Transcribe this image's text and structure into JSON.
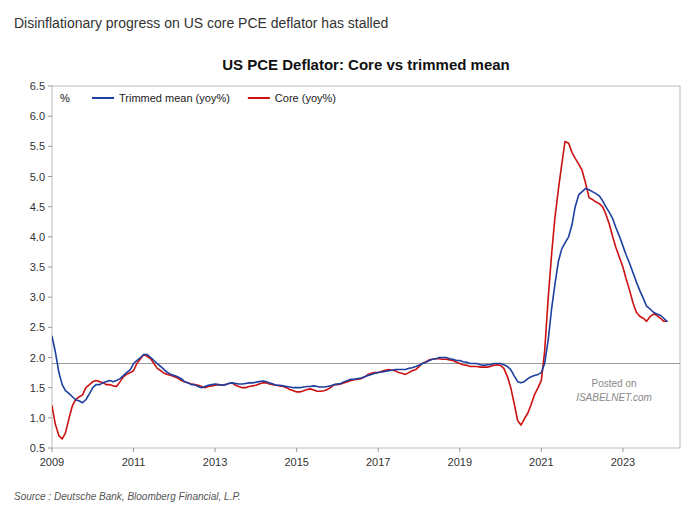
{
  "chart_data": {
    "type": "line",
    "title": "US PCE Deflator: Core vs trimmed mean",
    "headline": "Disinflationary progress on US core PCE deflator has stalled",
    "source": "Source : Deutsche Bank, Bloomberg Financial, L.P.",
    "y_label": "%",
    "watermark": [
      "Posted on",
      "ISABELNET.com"
    ],
    "reference_line": 1.9,
    "xlim": [
      2009.0,
      2024.4
    ],
    "xticks": [
      2009,
      2011,
      2013,
      2015,
      2017,
      2019,
      2021,
      2023
    ],
    "ylim": [
      0.5,
      6.5
    ],
    "yticks": [
      0.5,
      {
        "value": 1.0,
        "label": "1.0"
      },
      1.5,
      {
        "value": 2.0,
        "label": "2.0"
      },
      2.5,
      {
        "value": 3.0,
        "label": "3.0"
      },
      3.5,
      {
        "value": 4.0,
        "label": "4.0"
      },
      4.5,
      {
        "value": 5.0,
        "label": "5.0"
      },
      5.5,
      {
        "value": 6.0,
        "label": "6.0"
      },
      6.5
    ],
    "grid": false,
    "legend": "upper left",
    "x": [
      2009.0,
      2009.08,
      2009.17,
      2009.25,
      2009.33,
      2009.42,
      2009.5,
      2009.58,
      2009.67,
      2009.75,
      2009.83,
      2009.92,
      2010.0,
      2010.08,
      2010.17,
      2010.25,
      2010.33,
      2010.42,
      2010.5,
      2010.58,
      2010.67,
      2010.75,
      2010.83,
      2010.92,
      2011.0,
      2011.08,
      2011.17,
      2011.25,
      2011.33,
      2011.42,
      2011.5,
      2011.58,
      2011.67,
      2011.75,
      2011.83,
      2011.92,
      2012.0,
      2012.08,
      2012.17,
      2012.25,
      2012.33,
      2012.42,
      2012.5,
      2012.58,
      2012.67,
      2012.75,
      2012.83,
      2012.92,
      2013.0,
      2013.08,
      2013.17,
      2013.25,
      2013.33,
      2013.42,
      2013.5,
      2013.58,
      2013.67,
      2013.75,
      2013.83,
      2013.92,
      2014.0,
      2014.08,
      2014.17,
      2014.25,
      2014.33,
      2014.42,
      2014.5,
      2014.58,
      2014.67,
      2014.75,
      2014.83,
      2014.92,
      2015.0,
      2015.08,
      2015.17,
      2015.25,
      2015.33,
      2015.42,
      2015.5,
      2015.58,
      2015.67,
      2015.75,
      2015.83,
      2015.92,
      2016.0,
      2016.08,
      2016.17,
      2016.25,
      2016.33,
      2016.42,
      2016.5,
      2016.58,
      2016.67,
      2016.75,
      2016.83,
      2016.92,
      2017.0,
      2017.08,
      2017.17,
      2017.25,
      2017.33,
      2017.42,
      2017.5,
      2017.58,
      2017.67,
      2017.75,
      2017.83,
      2017.92,
      2018.0,
      2018.08,
      2018.17,
      2018.25,
      2018.33,
      2018.42,
      2018.5,
      2018.58,
      2018.67,
      2018.75,
      2018.83,
      2018.92,
      2019.0,
      2019.08,
      2019.17,
      2019.25,
      2019.33,
      2019.42,
      2019.5,
      2019.58,
      2019.67,
      2019.75,
      2019.83,
      2019.92,
      2020.0,
      2020.08,
      2020.17,
      2020.25,
      2020.33,
      2020.42,
      2020.5,
      2020.58,
      2020.67,
      2020.75,
      2020.83,
      2020.92,
      2021.0,
      2021.08,
      2021.17,
      2021.25,
      2021.33,
      2021.42,
      2021.5,
      2021.58,
      2021.67,
      2021.75,
      2021.83,
      2021.92,
      2022.0,
      2022.08,
      2022.17,
      2022.25,
      2022.33,
      2022.42,
      2022.5,
      2022.58,
      2022.67,
      2022.75,
      2022.83,
      2022.92,
      2023.0,
      2023.08,
      2023.17,
      2023.25,
      2023.33,
      2023.42,
      2023.5,
      2023.58,
      2023.67,
      2023.75,
      2023.83,
      2023.92,
      2024.0,
      2024.08
    ],
    "series": [
      {
        "name": "Trimmed mean (yoy%)",
        "color": "#1c3fa0",
        "values": [
          2.35,
          2.1,
          1.75,
          1.55,
          1.45,
          1.4,
          1.35,
          1.3,
          1.28,
          1.25,
          1.3,
          1.4,
          1.5,
          1.55,
          1.55,
          1.58,
          1.6,
          1.62,
          1.6,
          1.62,
          1.65,
          1.7,
          1.75,
          1.8,
          1.9,
          1.95,
          2.0,
          2.05,
          2.05,
          2.0,
          1.95,
          1.9,
          1.85,
          1.8,
          1.75,
          1.72,
          1.7,
          1.68,
          1.65,
          1.6,
          1.58,
          1.55,
          1.55,
          1.52,
          1.5,
          1.52,
          1.54,
          1.55,
          1.56,
          1.55,
          1.54,
          1.55,
          1.57,
          1.58,
          1.57,
          1.56,
          1.56,
          1.57,
          1.58,
          1.58,
          1.59,
          1.6,
          1.61,
          1.6,
          1.58,
          1.56,
          1.54,
          1.54,
          1.53,
          1.52,
          1.51,
          1.5,
          1.5,
          1.5,
          1.51,
          1.52,
          1.52,
          1.53,
          1.52,
          1.51,
          1.51,
          1.52,
          1.53,
          1.55,
          1.56,
          1.57,
          1.6,
          1.62,
          1.64,
          1.64,
          1.65,
          1.66,
          1.68,
          1.7,
          1.72,
          1.74,
          1.75,
          1.76,
          1.77,
          1.78,
          1.79,
          1.8,
          1.8,
          1.8,
          1.8,
          1.82,
          1.83,
          1.85,
          1.87,
          1.9,
          1.92,
          1.95,
          1.97,
          1.98,
          2.0,
          2.0,
          2.0,
          1.98,
          1.97,
          1.95,
          1.95,
          1.93,
          1.92,
          1.9,
          1.9,
          1.9,
          1.88,
          1.87,
          1.88,
          1.88,
          1.9,
          1.9,
          1.9,
          1.88,
          1.85,
          1.8,
          1.7,
          1.6,
          1.58,
          1.6,
          1.65,
          1.68,
          1.7,
          1.72,
          1.75,
          1.9,
          2.3,
          2.8,
          3.2,
          3.6,
          3.8,
          3.9,
          4.0,
          4.2,
          4.5,
          4.7,
          4.75,
          4.8,
          4.78,
          4.75,
          4.72,
          4.68,
          4.6,
          4.5,
          4.4,
          4.3,
          4.15,
          4.0,
          3.85,
          3.7,
          3.55,
          3.4,
          3.25,
          3.1,
          2.98,
          2.85,
          2.8,
          2.75,
          2.72,
          2.7,
          2.65,
          2.6
        ]
      },
      {
        "name": "Core (yoy%)",
        "color": "#cc1111",
        "values": [
          1.2,
          0.9,
          0.7,
          0.65,
          0.75,
          1.0,
          1.2,
          1.3,
          1.35,
          1.38,
          1.5,
          1.55,
          1.6,
          1.62,
          1.6,
          1.58,
          1.55,
          1.55,
          1.53,
          1.52,
          1.6,
          1.68,
          1.72,
          1.75,
          1.78,
          1.9,
          1.98,
          2.05,
          2.02,
          1.98,
          1.9,
          1.82,
          1.78,
          1.74,
          1.72,
          1.7,
          1.68,
          1.66,
          1.62,
          1.6,
          1.58,
          1.56,
          1.55,
          1.54,
          1.52,
          1.5,
          1.52,
          1.53,
          1.54,
          1.55,
          1.54,
          1.55,
          1.57,
          1.58,
          1.54,
          1.52,
          1.5,
          1.5,
          1.52,
          1.53,
          1.54,
          1.56,
          1.58,
          1.58,
          1.56,
          1.55,
          1.54,
          1.53,
          1.52,
          1.5,
          1.47,
          1.45,
          1.43,
          1.43,
          1.45,
          1.47,
          1.48,
          1.46,
          1.44,
          1.44,
          1.45,
          1.47,
          1.5,
          1.55,
          1.55,
          1.56,
          1.58,
          1.6,
          1.62,
          1.63,
          1.64,
          1.65,
          1.68,
          1.72,
          1.74,
          1.75,
          1.75,
          1.77,
          1.79,
          1.8,
          1.79,
          1.78,
          1.75,
          1.74,
          1.72,
          1.75,
          1.78,
          1.8,
          1.85,
          1.9,
          1.93,
          1.96,
          1.97,
          1.98,
          1.98,
          1.97,
          1.97,
          1.96,
          1.95,
          1.92,
          1.9,
          1.88,
          1.87,
          1.85,
          1.85,
          1.85,
          1.84,
          1.84,
          1.84,
          1.85,
          1.87,
          1.88,
          1.87,
          1.82,
          1.68,
          1.5,
          1.25,
          0.95,
          0.88,
          0.98,
          1.08,
          1.22,
          1.38,
          1.5,
          1.62,
          2.1,
          3.0,
          3.7,
          4.3,
          4.8,
          5.2,
          5.58,
          5.55,
          5.4,
          5.3,
          5.2,
          5.1,
          4.9,
          4.65,
          4.62,
          4.58,
          4.55,
          4.5,
          4.38,
          4.2,
          4.0,
          3.82,
          3.65,
          3.5,
          3.3,
          3.1,
          2.9,
          2.75,
          2.68,
          2.65,
          2.6,
          2.68,
          2.72,
          2.7,
          2.65,
          2.6,
          2.6
        ]
      }
    ]
  }
}
